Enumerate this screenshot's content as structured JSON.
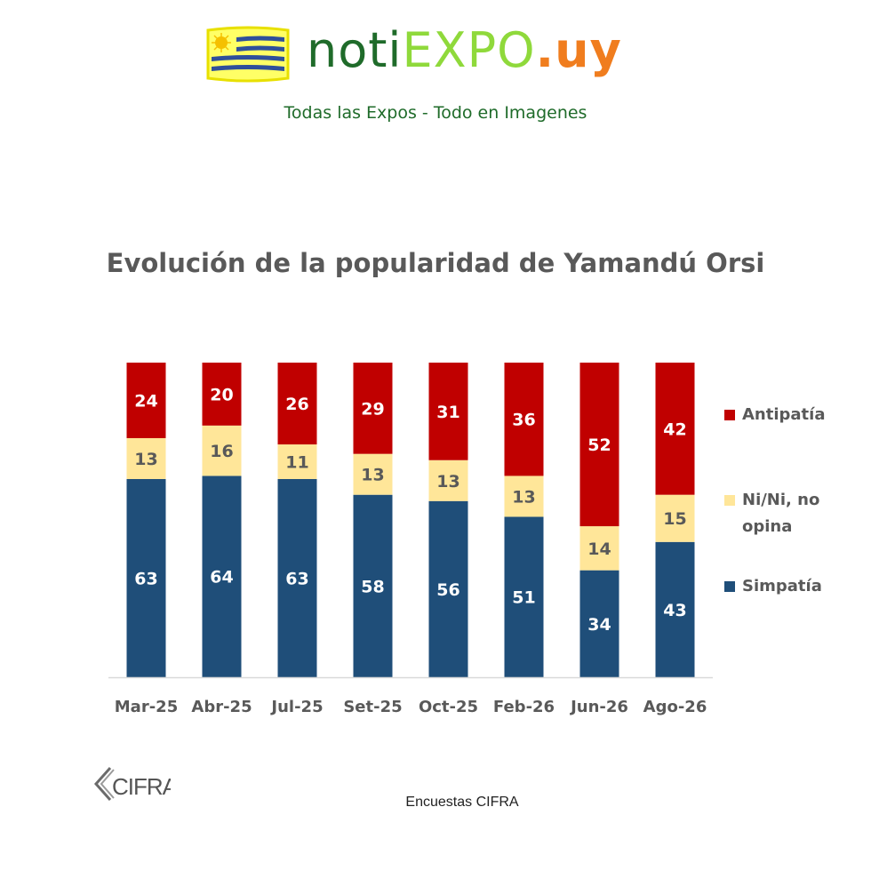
{
  "header": {
    "logo_noti": "noti",
    "logo_expo": "EXPO",
    "logo_uy": ".uy",
    "tagline": "Todas las Expos - Todo en Imagenes"
  },
  "chart_data": {
    "type": "bar",
    "stacked": true,
    "title": "Evolución de la popularidad de Yamandú Orsi",
    "categories": [
      "Mar-25",
      "Abr-25",
      "Jul-25",
      "Set-25",
      "Oct-25",
      "Feb-26",
      "Jun-26",
      "Ago-26"
    ],
    "series": [
      {
        "name": "Simpatía",
        "color": "#1f4e79",
        "label_color": "#ffffff",
        "values": [
          63,
          64,
          63,
          58,
          56,
          51,
          34,
          43
        ]
      },
      {
        "name": "Ni/Ni, no opina",
        "color": "#ffe699",
        "label_color": "#595959",
        "values": [
          13,
          16,
          11,
          13,
          13,
          13,
          14,
          15
        ]
      },
      {
        "name": "Antipatía",
        "color": "#c00000",
        "label_color": "#ffffff",
        "values": [
          24,
          20,
          26,
          29,
          31,
          36,
          52,
          42
        ]
      }
    ],
    "legend": [
      "Antipatía",
      "Ni/Ni, no opina",
      "Simpatía"
    ],
    "legend_position": "right",
    "xlabel": "",
    "ylabel": "",
    "ylim": [
      0,
      100
    ],
    "grid": false
  },
  "footer": {
    "logo_text": "CIFRA",
    "source": "Encuestas CIFRA"
  }
}
